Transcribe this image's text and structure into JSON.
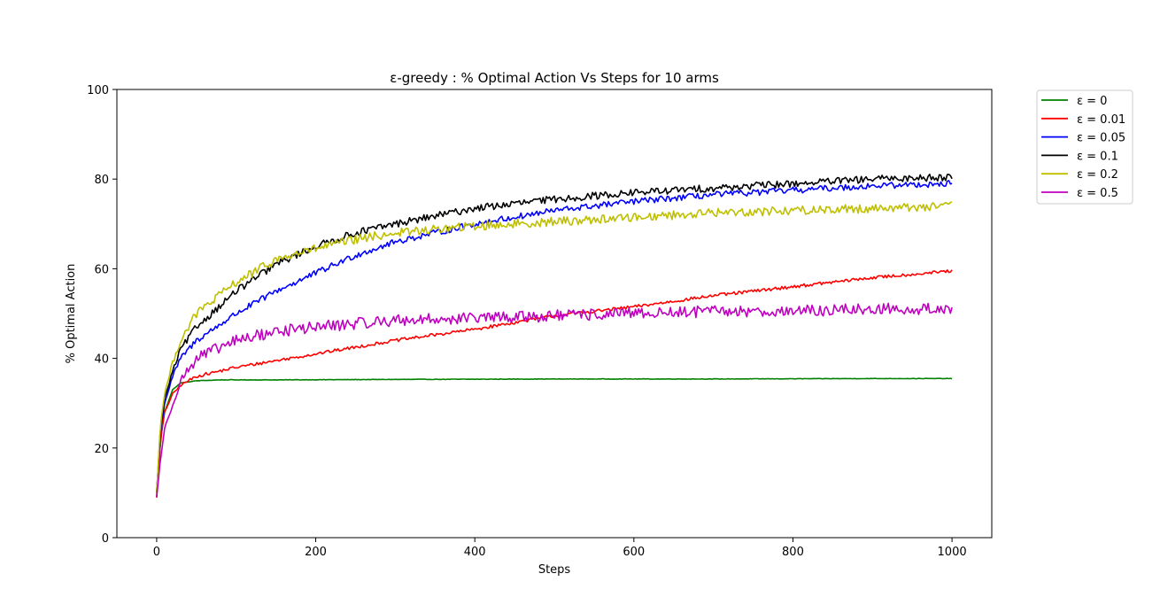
{
  "chart_data": {
    "type": "line",
    "title": "ε-greedy : % Optimal Action Vs Steps for 10 arms",
    "xlabel": "Steps",
    "ylabel": "% Optimal Action",
    "xlim": [
      -50,
      1050
    ],
    "ylim": [
      0,
      100
    ],
    "xticks": [
      0,
      200,
      400,
      600,
      800,
      1000
    ],
    "yticks": [
      0,
      20,
      40,
      60,
      80,
      100
    ],
    "grid": false,
    "legend_position": "outside-top-right",
    "series": [
      {
        "name": "ε = 0",
        "color": "#008000",
        "noise": 0.05,
        "x": [
          0,
          5,
          10,
          20,
          30,
          50,
          80,
          150,
          300,
          500,
          700,
          900,
          1000
        ],
        "y": [
          9,
          22,
          28,
          33,
          34.5,
          35,
          35.2,
          35.2,
          35.3,
          35.4,
          35.4,
          35.5,
          35.5
        ]
      },
      {
        "name": "ε = 0.01",
        "color": "#ff0000",
        "noise": 0.35,
        "x": [
          0,
          5,
          10,
          20,
          30,
          50,
          100,
          150,
          200,
          300,
          400,
          500,
          600,
          700,
          800,
          900,
          1000
        ],
        "y": [
          9,
          22,
          28,
          32,
          34,
          36,
          38,
          39.5,
          41,
          44,
          46.5,
          49.5,
          51.5,
          54,
          56,
          58,
          59.5
        ]
      },
      {
        "name": "ε = 0.05",
        "color": "#0000ff",
        "noise": 0.7,
        "x": [
          0,
          5,
          10,
          20,
          30,
          50,
          100,
          150,
          200,
          250,
          300,
          400,
          500,
          600,
          700,
          800,
          900,
          1000
        ],
        "y": [
          10,
          24,
          30,
          36,
          40,
          44,
          50,
          55,
          59,
          63,
          66,
          70,
          73,
          75,
          76.5,
          77.5,
          78.5,
          79
        ]
      },
      {
        "name": "ε = 0.1",
        "color": "#000000",
        "noise": 0.8,
        "x": [
          0,
          5,
          10,
          20,
          30,
          50,
          100,
          150,
          200,
          250,
          300,
          400,
          500,
          600,
          700,
          800,
          900,
          1000
        ],
        "y": [
          10,
          25,
          31,
          37,
          42,
          47,
          55,
          61,
          65,
          68,
          70,
          73.5,
          75.5,
          77,
          78,
          79,
          80,
          80.5
        ]
      },
      {
        "name": "ε = 0.2",
        "color": "#bfbf00",
        "noise": 1.0,
        "x": [
          0,
          5,
          10,
          20,
          30,
          50,
          100,
          150,
          200,
          250,
          300,
          400,
          500,
          600,
          700,
          800,
          900,
          1000
        ],
        "y": [
          10,
          26,
          32,
          39,
          44,
          50,
          57,
          62,
          64.5,
          66.5,
          68,
          69.5,
          70.5,
          71.5,
          72.5,
          73,
          73.5,
          74
        ]
      },
      {
        "name": "ε = 0.5",
        "color": "#bf00bf",
        "noise": 1.3,
        "x": [
          0,
          5,
          10,
          20,
          30,
          50,
          100,
          150,
          200,
          300,
          400,
          500,
          600,
          700,
          800,
          900,
          1000
        ],
        "y": [
          9,
          18,
          24,
          30,
          35,
          40,
          44,
          46,
          47,
          48.5,
          49,
          49.5,
          50,
          50.5,
          50.5,
          51,
          51
        ]
      }
    ]
  }
}
